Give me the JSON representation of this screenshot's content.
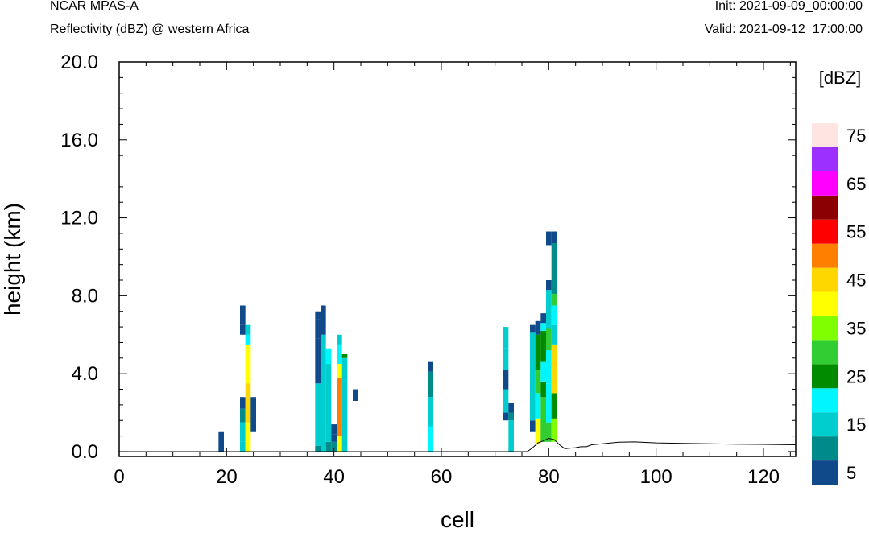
{
  "header": {
    "model": "NCAR MPAS-A",
    "field": "Reflectivity (dBZ) @ western Africa",
    "init": "Init: 2021-09-09_00:00:00",
    "valid": "Valid: 2021-09-12_17:00:00"
  },
  "chart_data": {
    "type": "heatmap",
    "xlabel": "cell",
    "ylabel": "height (km)",
    "xlim": [
      0,
      126
    ],
    "ylim": [
      -0.25,
      20.0
    ],
    "xticks": [
      "0",
      "20",
      "40",
      "60",
      "80",
      "100",
      "120"
    ],
    "yticks": [
      "0.0",
      "4.0",
      "8.0",
      "12.0",
      "16.0",
      "20.0"
    ],
    "colorbar": {
      "unit_label": "[dBZ]",
      "levels": [
        5,
        10,
        15,
        20,
        25,
        30,
        35,
        40,
        45,
        50,
        55,
        60,
        65,
        70,
        75
      ],
      "labels": [
        "5",
        "15",
        "25",
        "35",
        "45",
        "55",
        "65",
        "75"
      ],
      "colors": [
        "#104a8a",
        "#008b8b",
        "#00cdcd",
        "#00f5ff",
        "#008b00",
        "#32cd32",
        "#7fff00",
        "#ffff00",
        "#ffd700",
        "#ff7f00",
        "#ff0000",
        "#8b0000",
        "#ff00ff",
        "#9b30ff",
        "#ffe4e1"
      ]
    },
    "columns": [
      {
        "x": 19,
        "cells": [
          [
            0,
            1,
            5
          ]
        ]
      },
      {
        "x": 23,
        "cells": [
          [
            0,
            0.5,
            15
          ],
          [
            0.5,
            1.5,
            15
          ],
          [
            1.5,
            2.2,
            10
          ],
          [
            2.2,
            2.8,
            5
          ],
          [
            6.0,
            6.5,
            5
          ],
          [
            6.5,
            7.5,
            5
          ]
        ]
      },
      {
        "x": 24,
        "cells": [
          [
            0,
            1.5,
            40
          ],
          [
            1.5,
            2.8,
            45
          ],
          [
            2.8,
            3.5,
            45
          ],
          [
            3.5,
            5.5,
            40
          ],
          [
            5.5,
            6.0,
            20
          ],
          [
            6.0,
            6.5,
            15
          ]
        ]
      },
      {
        "x": 25,
        "cells": [
          [
            1.0,
            2.8,
            5
          ]
        ]
      },
      {
        "x": 37,
        "cells": [
          [
            0,
            0.3,
            10
          ],
          [
            0.3,
            3.5,
            15
          ],
          [
            3.5,
            3.8,
            5
          ],
          [
            3.8,
            5.8,
            5
          ],
          [
            5.8,
            6.8,
            5
          ],
          [
            6.8,
            7.2,
            5
          ]
        ]
      },
      {
        "x": 38,
        "cells": [
          [
            0,
            5.0,
            15
          ],
          [
            5.0,
            6.0,
            15
          ],
          [
            6.0,
            7.5,
            5
          ]
        ]
      },
      {
        "x": 39,
        "cells": [
          [
            0,
            0.5,
            10
          ],
          [
            0.5,
            4.5,
            15
          ],
          [
            4.5,
            5.3,
            20
          ]
        ]
      },
      {
        "x": 40,
        "cells": [
          [
            0,
            0.5,
            10
          ],
          [
            0.5,
            0.9,
            5
          ],
          [
            0.9,
            1.4,
            5
          ]
        ]
      },
      {
        "x": 41,
        "cells": [
          [
            0,
            0.8,
            40
          ],
          [
            0.8,
            3.8,
            50
          ],
          [
            3.8,
            4.5,
            40
          ],
          [
            4.5,
            5.5,
            20
          ],
          [
            5.5,
            6.0,
            15
          ]
        ]
      },
      {
        "x": 42,
        "cells": [
          [
            0,
            4.0,
            15
          ],
          [
            4.0,
            4.8,
            15
          ],
          [
            4.8,
            5.0,
            25
          ]
        ]
      },
      {
        "x": 44,
        "cells": [
          [
            2.6,
            3.2,
            5
          ]
        ]
      },
      {
        "x": 58,
        "cells": [
          [
            0,
            1.3,
            20
          ],
          [
            1.3,
            2.8,
            15
          ],
          [
            2.8,
            4.1,
            10
          ],
          [
            4.1,
            4.6,
            5
          ]
        ]
      },
      {
        "x": 72,
        "cells": [
          [
            1.6,
            2.0,
            5
          ],
          [
            2.0,
            3.2,
            15
          ],
          [
            3.2,
            4.2,
            5
          ],
          [
            4.2,
            5.3,
            15
          ],
          [
            5.3,
            6.4,
            15
          ]
        ]
      },
      {
        "x": 73,
        "cells": [
          [
            0,
            1.6,
            15
          ],
          [
            1.6,
            2.0,
            10
          ],
          [
            2.0,
            2.5,
            5
          ]
        ]
      },
      {
        "x": 77,
        "cells": [
          [
            1.0,
            1.6,
            5
          ],
          [
            1.6,
            4.2,
            15
          ],
          [
            4.2,
            6.1,
            15
          ],
          [
            6.1,
            6.5,
            5
          ]
        ]
      },
      {
        "x": 78,
        "cells": [
          [
            0.4,
            1.7,
            40
          ],
          [
            1.7,
            3.0,
            20
          ],
          [
            3.0,
            4.2,
            30
          ],
          [
            4.2,
            6.0,
            25
          ],
          [
            6.0,
            6.7,
            5
          ]
        ]
      },
      {
        "x": 79,
        "cells": [
          [
            0.5,
            2.8,
            30
          ],
          [
            2.8,
            3.6,
            25
          ],
          [
            3.6,
            4.6,
            20
          ],
          [
            4.6,
            6.2,
            25
          ],
          [
            6.2,
            6.6,
            20
          ],
          [
            6.6,
            7.1,
            5
          ]
        ]
      },
      {
        "x": 80,
        "cells": [
          [
            0.5,
            1.5,
            30
          ],
          [
            1.5,
            3.5,
            20
          ],
          [
            3.5,
            5.2,
            20
          ],
          [
            5.2,
            6.3,
            30
          ],
          [
            6.3,
            8.3,
            15
          ],
          [
            8.3,
            8.8,
            5
          ],
          [
            10.6,
            11.3,
            5
          ]
        ]
      },
      {
        "x": 81,
        "cells": [
          [
            0.5,
            1.7,
            35
          ],
          [
            1.7,
            3.0,
            25
          ],
          [
            3.0,
            5.5,
            45
          ],
          [
            5.5,
            6.5,
            15
          ],
          [
            6.5,
            7.5,
            20
          ],
          [
            7.5,
            8.1,
            30
          ],
          [
            8.1,
            10.7,
            10
          ],
          [
            10.7,
            11.3,
            5
          ]
        ]
      }
    ],
    "terrain": [
      [
        76,
        0.0
      ],
      [
        77,
        0.2
      ],
      [
        78,
        0.45
      ],
      [
        79,
        0.55
      ],
      [
        80,
        0.68
      ],
      [
        81,
        0.62
      ],
      [
        82,
        0.35
      ],
      [
        83,
        0.15
      ],
      [
        84,
        0.18
      ],
      [
        85,
        0.2
      ],
      [
        86,
        0.25
      ],
      [
        87,
        0.25
      ],
      [
        88,
        0.35
      ],
      [
        90,
        0.4
      ],
      [
        93,
        0.48
      ],
      [
        96,
        0.5
      ],
      [
        100,
        0.45
      ],
      [
        105,
        0.42
      ],
      [
        110,
        0.4
      ],
      [
        115,
        0.38
      ],
      [
        120,
        0.37
      ],
      [
        126,
        0.35
      ]
    ]
  }
}
